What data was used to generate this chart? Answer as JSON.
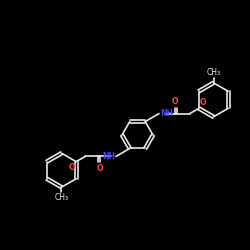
{
  "bg_color": "#000000",
  "bond_color": "#e8e8e8",
  "N_color": "#4444ff",
  "O_color": "#ff4444",
  "lw": 1.2,
  "fs": 5.5,
  "xlim": [
    0,
    10
  ],
  "ylim": [
    0,
    10
  ]
}
